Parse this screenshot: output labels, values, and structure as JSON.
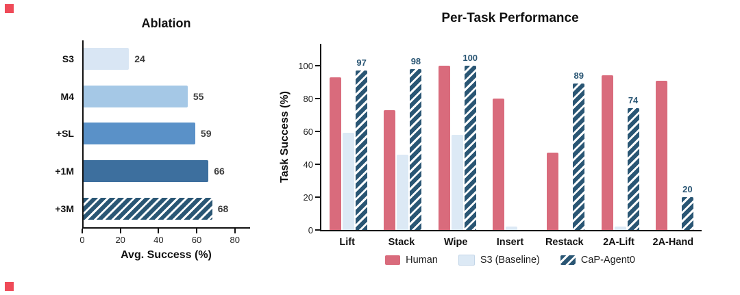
{
  "markers": {
    "color": "#ef4a58"
  },
  "chart_data": [
    {
      "type": "bar",
      "orientation": "horizontal",
      "title": "Ablation",
      "xlabel": "Avg. Success (%)",
      "categories": [
        "S3",
        "M4",
        "+SL",
        "+1M",
        "+3M"
      ],
      "values": [
        24,
        55,
        59,
        66,
        68
      ],
      "xlim": [
        0,
        88
      ],
      "xticks": [
        0,
        20,
        40,
        60,
        80
      ],
      "bar_colors": [
        "#d9e6f4",
        "#a5c8e6",
        "#5a91c8",
        "#3d6f9e",
        "#2a5674"
      ],
      "hatched": [
        false,
        false,
        false,
        false,
        true
      ],
      "grid": false,
      "value_label_color": "#3d3d3d"
    },
    {
      "type": "bar",
      "title": "Per-Task Performance",
      "ylabel": "Task Success (%)",
      "categories": [
        "Lift",
        "Stack",
        "Wipe",
        "Insert",
        "Restack",
        "2A-Lift",
        "2A-Hand"
      ],
      "series": [
        {
          "name": "Human",
          "color": "#d96b7c",
          "hatch": false,
          "values": [
            93,
            73,
            100,
            80,
            47,
            94,
            91
          ]
        },
        {
          "name": "S3 (Baseline)",
          "color": "#dce9f5",
          "hatch": false,
          "values": [
            59,
            46,
            58,
            2,
            0,
            2,
            0
          ]
        },
        {
          "name": "CaP-Agent0",
          "color": "#2a5674",
          "hatch": true,
          "values": [
            97,
            98,
            100,
            0,
            89,
            74,
            20
          ],
          "value_labels": [
            "97",
            "98",
            "100",
            "",
            "89",
            "74",
            "20"
          ]
        }
      ],
      "ylim": [
        0,
        100
      ],
      "yticks": [
        0,
        20,
        40,
        60,
        80,
        100
      ],
      "grid": false,
      "legend_position": "bottom"
    }
  ]
}
